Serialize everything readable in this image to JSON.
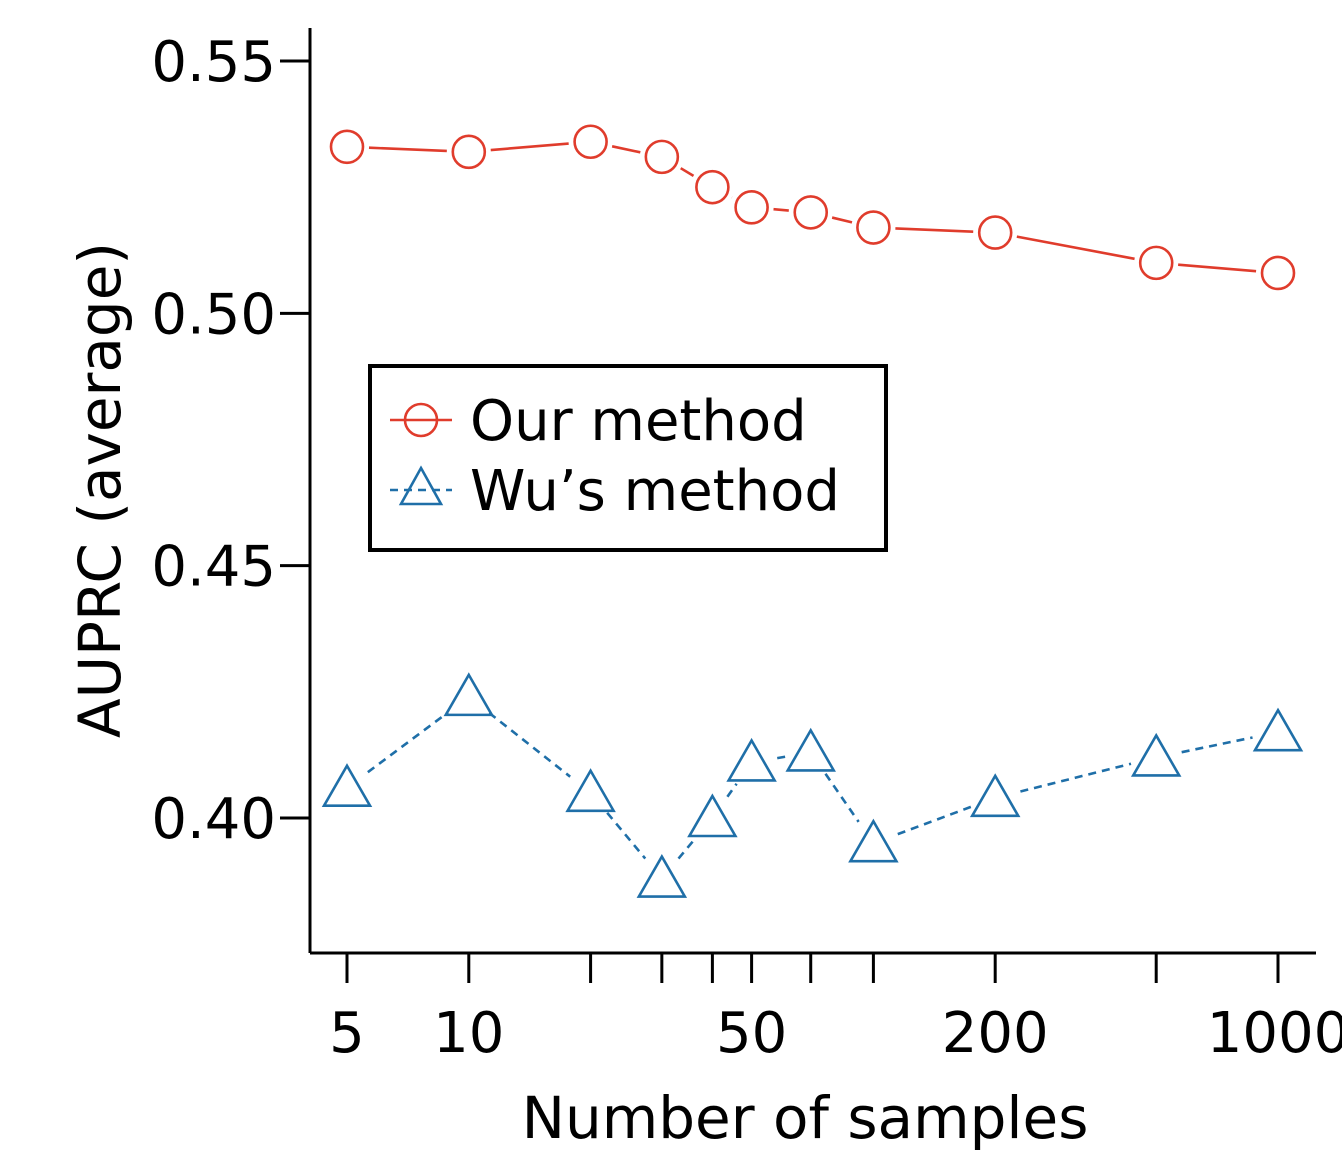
{
  "chart_data": {
    "type": "line",
    "xlabel": "Number of samples",
    "ylabel": "AUPRC (average)",
    "x_scale": "log",
    "x_ticks": [
      5,
      10,
      20,
      30,
      40,
      50,
      70,
      100,
      200,
      500,
      1000
    ],
    "x_tick_labels": [
      "5",
      "10",
      "",
      "",
      "",
      "50",
      "",
      "",
      "200",
      "",
      "1000"
    ],
    "y_ticks": [
      0.4,
      0.45,
      0.5,
      0.55
    ],
    "y_tick_labels": [
      "0.40",
      "0.45",
      "0.50",
      "0.55"
    ],
    "ylim": [
      0.375,
      0.56
    ],
    "legend_position": "center-left",
    "series": [
      {
        "name": "Our method",
        "color": "#e03c2c",
        "marker": "circle",
        "line": "solid",
        "x": [
          5,
          10,
          20,
          30,
          40,
          50,
          70,
          100,
          200,
          500,
          1000
        ],
        "y": [
          0.533,
          0.532,
          0.534,
          0.531,
          0.525,
          0.521,
          0.52,
          0.517,
          0.516,
          0.51,
          0.508
        ]
      },
      {
        "name": "Wu’s method",
        "color": "#1f6fa8",
        "marker": "triangle",
        "line": "dashed",
        "x": [
          5,
          10,
          20,
          30,
          40,
          50,
          70,
          100,
          200,
          500,
          1000
        ],
        "y": [
          0.406,
          0.424,
          0.405,
          0.388,
          0.4,
          0.411,
          0.413,
          0.395,
          0.404,
          0.412,
          0.417
        ]
      }
    ]
  }
}
